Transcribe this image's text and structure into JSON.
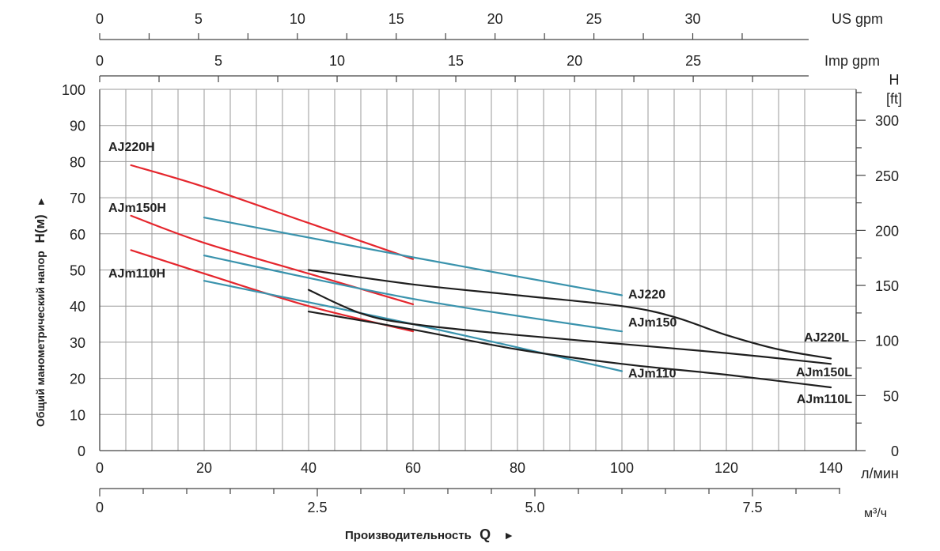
{
  "chart_data": {
    "type": "line",
    "xlabel_prefix": "Производительность",
    "xlabel_symbol": "Q",
    "xlabel_arrow": "►",
    "ylabel_text": "Общий манометрический напор",
    "ylabel_symbol": "H(м)",
    "ylabel_arrow": "►",
    "axes": {
      "lmin": {
        "unit": "л/мин",
        "range": [
          0,
          140
        ],
        "ticks": [
          0,
          20,
          40,
          60,
          80,
          100,
          120,
          140
        ],
        "tick_labels": [
          "0",
          "20",
          "40",
          "60",
          "80",
          "100",
          "120",
          "140"
        ]
      },
      "m3h": {
        "unit": "м³/ч",
        "ticks": [
          0,
          2.5,
          5.0,
          7.5
        ],
        "tick_labels": [
          "0",
          "2.5",
          "5.0",
          "7.5"
        ]
      },
      "us_gpm": {
        "unit": "US gpm",
        "ticks": [
          0,
          5,
          10,
          15,
          20,
          25,
          30
        ],
        "tick_labels": [
          "0",
          "5",
          "10",
          "15",
          "20",
          "25",
          "30"
        ]
      },
      "imp_gpm": {
        "unit": "Imp gpm",
        "ticks": [
          0,
          5,
          10,
          15,
          20,
          25
        ],
        "tick_labels": [
          "0",
          "5",
          "10",
          "15",
          "20",
          "25"
        ]
      },
      "h_m": {
        "range": [
          0,
          100
        ],
        "ticks": [
          0,
          10,
          20,
          30,
          40,
          50,
          60,
          70,
          80,
          90,
          100
        ],
        "tick_labels": [
          "0",
          "10",
          "20",
          "30",
          "40",
          "50",
          "60",
          "70",
          "80",
          "90",
          "100"
        ]
      },
      "h_ft": {
        "unit_line1": "H",
        "unit_line2": "[ft]",
        "ticks": [
          0,
          50,
          100,
          150,
          200,
          250,
          300
        ],
        "tick_labels": [
          "0",
          "50",
          "100",
          "150",
          "200",
          "250",
          "300"
        ]
      }
    },
    "series": [
      {
        "name": "AJ220H",
        "label": "AJ220H",
        "color": "#e5262d",
        "label_side": "left",
        "x": [
          6,
          20,
          40,
          60
        ],
        "y": [
          79,
          73,
          63,
          53
        ]
      },
      {
        "name": "AJm150H",
        "label": "AJm150H",
        "color": "#e5262d",
        "label_side": "left",
        "x": [
          6,
          20,
          40,
          60
        ],
        "y": [
          65,
          57.5,
          49,
          40.5
        ]
      },
      {
        "name": "AJm110H",
        "label": "AJm110H",
        "color": "#e5262d",
        "label_side": "left",
        "x": [
          6,
          20,
          40,
          60
        ],
        "y": [
          55.5,
          49,
          40,
          33
        ]
      },
      {
        "name": "AJ220",
        "label": "AJ220",
        "color": "#3a93ad",
        "label_side": "right",
        "x": [
          20,
          60,
          100
        ],
        "y": [
          64.5,
          53.5,
          43
        ]
      },
      {
        "name": "AJm150",
        "label": "AJm150",
        "color": "#3a93ad",
        "label_side": "right",
        "x": [
          20,
          60,
          100
        ],
        "y": [
          54,
          42,
          33
        ]
      },
      {
        "name": "AJm110",
        "label": "AJm110",
        "color": "#3a93ad",
        "label_side": "right",
        "x": [
          20,
          60,
          100
        ],
        "y": [
          47,
          35,
          22
        ]
      },
      {
        "name": "AJ220L",
        "label": "AJ220L",
        "color": "#1e1e1e",
        "label_side": "right",
        "x": [
          40,
          60,
          80,
          100,
          110,
          120,
          130,
          140
        ],
        "y": [
          50,
          46,
          43,
          40,
          37,
          32,
          28,
          25.5
        ]
      },
      {
        "name": "AJm150L",
        "label": "AJm150L",
        "color": "#1e1e1e",
        "label_side": "right",
        "x": [
          40,
          50,
          60,
          80,
          100,
          120,
          140
        ],
        "y": [
          44.5,
          38,
          35,
          32,
          29.5,
          27,
          24
        ]
      },
      {
        "name": "AJm110L",
        "label": "AJm110L",
        "color": "#1e1e1e",
        "label_side": "right",
        "x": [
          40,
          60,
          80,
          100,
          120,
          140
        ],
        "y": [
          38.5,
          33.5,
          28,
          24,
          21,
          17.5
        ]
      }
    ]
  }
}
